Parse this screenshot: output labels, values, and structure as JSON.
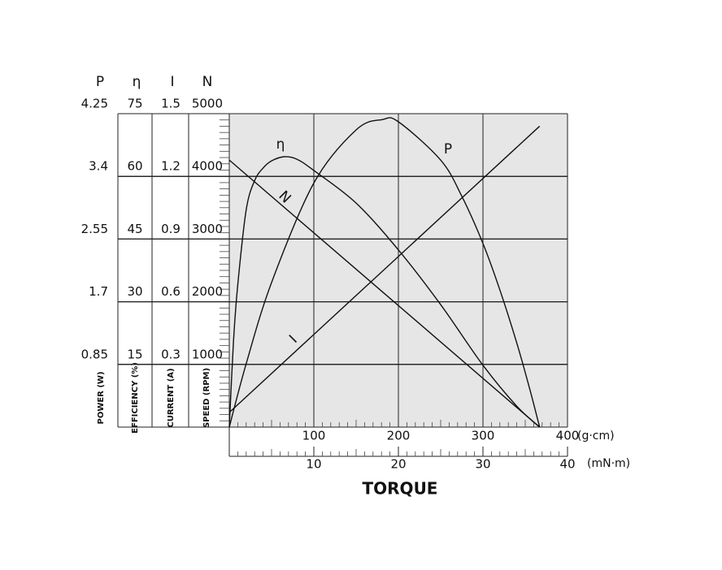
{
  "chart_data": {
    "type": "line",
    "x_label": "TORQUE",
    "x_unit": "(g·cm)",
    "xlim": [
      0,
      400
    ],
    "xticks": [
      100,
      200,
      300,
      400
    ],
    "x2_unit": "(mN·m)",
    "x2lim": [
      0,
      40
    ],
    "x2ticks": [
      10,
      20,
      30,
      40
    ],
    "grid": true,
    "axes": [
      {
        "symbol": "P",
        "label": "POWER (W)",
        "ylim": [
          0,
          4.25
        ],
        "yticks": [
          0.85,
          1.7,
          2.55,
          3.4,
          4.25
        ]
      },
      {
        "symbol": "η",
        "label": "EFFICIENCY (%)",
        "ylim": [
          0,
          75
        ],
        "yticks": [
          15,
          30,
          45,
          60,
          75
        ]
      },
      {
        "symbol": "I",
        "label": "CURRENT (A)",
        "ylim": [
          0,
          1.5
        ],
        "yticks": [
          0.3,
          0.6,
          0.9,
          1.2,
          1.5
        ]
      },
      {
        "symbol": "N",
        "label": "SPEED (RPM)",
        "ylim": [
          0,
          5000
        ],
        "yticks": [
          1000,
          2000,
          3000,
          4000,
          5000
        ]
      }
    ],
    "series": [
      {
        "name": "η",
        "axis": 1,
        "color": "#111111",
        "x": [
          0,
          5,
          10,
          20,
          30,
          40,
          50,
          65,
          80,
          100,
          150,
          200,
          250,
          300,
          340,
          367
        ],
        "values": [
          0,
          20.6,
          34,
          52,
          59,
          62,
          63.7,
          64.7,
          64.1,
          61.4,
          53.6,
          42.4,
          29.3,
          14.8,
          5,
          0
        ]
      },
      {
        "name": "P",
        "axis": 0,
        "color": "#111111",
        "x": [
          0,
          20,
          50,
          100,
          150,
          181,
          200,
          250,
          275,
          300,
          320,
          340,
          355,
          367
        ],
        "values": [
          0,
          0.86,
          1.96,
          3.31,
          4.03,
          4.17,
          4.14,
          3.62,
          3.13,
          2.49,
          1.86,
          1.14,
          0.53,
          0
        ]
      },
      {
        "name": "N",
        "axis": 3,
        "color": "#111111",
        "x": [
          0,
          367
        ],
        "values": [
          4260,
          0
        ]
      },
      {
        "name": "I",
        "axis": 2,
        "color": "#111111",
        "x": [
          0,
          367
        ],
        "values": [
          0.07,
          1.44
        ]
      }
    ]
  }
}
